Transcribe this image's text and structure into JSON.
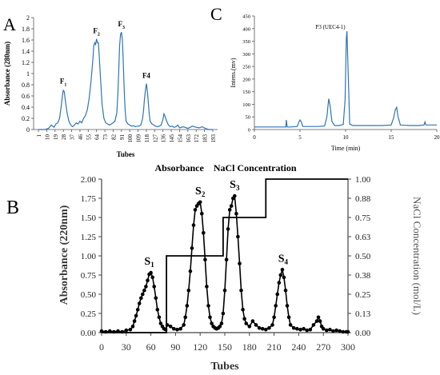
{
  "chart_data": [
    {
      "panel": "A",
      "type": "line",
      "xlabel": "Tubes",
      "ylabel": "Absorbance (280nm)",
      "ylim": [
        0,
        2
      ],
      "y_ticks": [
        "0",
        "0.2",
        "0.4",
        "0.6",
        "0.8",
        "1",
        "1.2",
        "1.4",
        "1.6",
        "1.8",
        "2"
      ],
      "x_ticks": [
        "1",
        "10",
        "19",
        "28",
        "37",
        "46",
        "55",
        "64",
        "73",
        "82",
        "91",
        "100",
        "109",
        "118",
        "127",
        "136",
        "145",
        "154",
        "163",
        "172",
        "183",
        "193"
      ],
      "color": "#2e75b6",
      "peaks": [
        {
          "label": "F",
          "sub": "1",
          "x": 28,
          "y": 0.72
        },
        {
          "label": "F",
          "sub": "2",
          "x": 64,
          "y": 1.62
        },
        {
          "label": "F",
          "sub": "3",
          "x": 91,
          "y": 1.74
        },
        {
          "label": "F4",
          "sub": "",
          "x": 118,
          "y": 0.82
        }
      ],
      "x": [
        1,
        8,
        12,
        15,
        18,
        20,
        22,
        24,
        26,
        27,
        28,
        29,
        30,
        32,
        34,
        36,
        38,
        40,
        42,
        44,
        46,
        48,
        50,
        52,
        54,
        56,
        58,
        60,
        61,
        62,
        63,
        64,
        65,
        66,
        67,
        68,
        70,
        72,
        74,
        76,
        78,
        80,
        82,
        84,
        86,
        87,
        88,
        89,
        90,
        91,
        92,
        93,
        94,
        95,
        96,
        98,
        100,
        102,
        104,
        106,
        108,
        110,
        112,
        114,
        115,
        116,
        117,
        118,
        119,
        120,
        121,
        122,
        124,
        126,
        128,
        130,
        132,
        134,
        136,
        137,
        138,
        140,
        142,
        144,
        146,
        148,
        150,
        152,
        154,
        158,
        163,
        168,
        172,
        176,
        180,
        184,
        188,
        193
      ],
      "y": [
        0.0,
        0.0,
        0.02,
        0.08,
        0.04,
        0.1,
        0.12,
        0.2,
        0.45,
        0.6,
        0.7,
        0.68,
        0.55,
        0.3,
        0.15,
        0.08,
        0.05,
        0.08,
        0.12,
        0.1,
        0.15,
        0.12,
        0.2,
        0.25,
        0.35,
        0.55,
        0.85,
        1.25,
        1.5,
        1.55,
        1.52,
        1.62,
        1.55,
        1.55,
        1.3,
        1.0,
        0.45,
        0.2,
        0.12,
        0.1,
        0.08,
        0.1,
        0.12,
        0.15,
        0.3,
        0.6,
        1.0,
        1.5,
        1.7,
        1.74,
        1.6,
        1.2,
        0.7,
        0.35,
        0.15,
        0.1,
        0.08,
        0.06,
        0.07,
        0.05,
        0.06,
        0.06,
        0.08,
        0.2,
        0.35,
        0.55,
        0.7,
        0.82,
        0.7,
        0.5,
        0.3,
        0.15,
        0.1,
        0.08,
        0.06,
        0.05,
        0.06,
        0.08,
        0.18,
        0.28,
        0.25,
        0.15,
        0.08,
        0.05,
        0.06,
        0.04,
        0.05,
        0.08,
        0.03,
        0.05,
        0.02,
        0.06,
        0.04,
        0.03,
        0.05,
        0.02,
        0.0,
        0.0
      ]
    },
    {
      "panel": "C",
      "type": "line",
      "xlabel": "Time (min)",
      "ylabel": "Intens.(mv)",
      "xlim": [
        0,
        20
      ],
      "ylim": [
        0,
        450
      ],
      "x_ticks": [
        "0",
        "5",
        "10",
        "15",
        "20"
      ],
      "y_ticks": [
        "0",
        "50",
        "100",
        "150",
        "200",
        "250",
        "300",
        "350",
        "400",
        "450"
      ],
      "annotation": "P3 (UEC4-1)",
      "color": "#2e75b6",
      "x": [
        0,
        1,
        2,
        3,
        3.45,
        3.5,
        3.6,
        4,
        4.7,
        4.85,
        5,
        5.15,
        5.3,
        6,
        7,
        7.7,
        7.95,
        8.15,
        8.3,
        8.5,
        8.8,
        9.3,
        9.75,
        9.95,
        10.08,
        10.15,
        10.25,
        10.45,
        10.8,
        12,
        13,
        14,
        15,
        15.25,
        15.45,
        15.6,
        15.75,
        16,
        17,
        18,
        18.6,
        18.7,
        18.8,
        19,
        20
      ],
      "y": [
        10,
        10,
        10,
        10,
        10,
        38,
        10,
        10,
        12,
        28,
        38,
        30,
        12,
        12,
        12,
        14,
        50,
        122,
        95,
        32,
        16,
        16,
        20,
        120,
        360,
        390,
        260,
        22,
        16,
        16,
        16,
        16,
        18,
        45,
        78,
        88,
        52,
        18,
        16,
        16,
        18,
        30,
        18,
        18,
        18
      ]
    },
    {
      "panel": "B",
      "type": "line",
      "title": "Absorbance    NaCl Concentration",
      "xlabel": "Tubes",
      "ylabel": "Absorbance (220nm)",
      "y2label": "NaCl Concentration (mol/L)",
      "xlim": [
        0,
        300
      ],
      "ylim": [
        0,
        2
      ],
      "y2lim": [
        0,
        1
      ],
      "x_ticks": [
        "0",
        "30",
        "60",
        "90",
        "120",
        "150",
        "180",
        "210",
        "240",
        "270",
        "300"
      ],
      "y_ticks": [
        "0.00",
        "0.25",
        "0.50",
        "0.75",
        "1.00",
        "1.25",
        "1.50",
        "1.75",
        "2.00"
      ],
      "y2_ticks": [
        "0.00",
        "0.13",
        "0.25",
        "0.38",
        "0.50",
        "0.63",
        "0.75",
        "0.88",
        "1.00"
      ],
      "peaks": [
        {
          "label": "S",
          "sub": "1",
          "x": 58,
          "y": 0.78
        },
        {
          "label": "S",
          "sub": "2",
          "x": 120,
          "y": 1.7
        },
        {
          "label": "S",
          "sub": "3",
          "x": 162,
          "y": 1.78
        },
        {
          "label": "S",
          "sub": "4",
          "x": 221,
          "y": 0.82
        }
      ],
      "series": [
        {
          "marker": "circle",
          "color": "#000000",
          "x": [
            0,
            5,
            10,
            15,
            20,
            25,
            30,
            35,
            38,
            40,
            42,
            44,
            46,
            48,
            50,
            52,
            54,
            56,
            58,
            60,
            62,
            64,
            66,
            68,
            70,
            72,
            74,
            76,
            78,
            80,
            84,
            88,
            92,
            96,
            100,
            102,
            104,
            106,
            108,
            110,
            112,
            114,
            116,
            118,
            120,
            122,
            124,
            126,
            128,
            130,
            132,
            134,
            136,
            138,
            140,
            142,
            144,
            146,
            148,
            150,
            152,
            154,
            156,
            158,
            160,
            162,
            164,
            166,
            168,
            170,
            172,
            174,
            176,
            180,
            184,
            188,
            192,
            196,
            200,
            204,
            208,
            210,
            212,
            214,
            216,
            218,
            220,
            222,
            224,
            226,
            228,
            230,
            234,
            238,
            242,
            246,
            250,
            254,
            258,
            262,
            264,
            266,
            268,
            270,
            274,
            278,
            282,
            286,
            290,
            294,
            298,
            300
          ],
          "y": [
            0.02,
            0.01,
            0.02,
            0.01,
            0.02,
            0.01,
            0.03,
            0.04,
            0.08,
            0.15,
            0.22,
            0.3,
            0.38,
            0.45,
            0.5,
            0.55,
            0.6,
            0.68,
            0.76,
            0.78,
            0.72,
            0.6,
            0.45,
            0.3,
            0.2,
            0.12,
            0.08,
            0.05,
            0.04,
            0.1,
            0.08,
            0.05,
            0.04,
            0.05,
            0.1,
            0.2,
            0.35,
            0.55,
            0.8,
            1.1,
            1.4,
            1.6,
            1.65,
            1.68,
            1.7,
            1.55,
            1.3,
            0.95,
            0.6,
            0.35,
            0.2,
            0.12,
            0.08,
            0.06,
            0.05,
            0.06,
            0.08,
            0.12,
            0.25,
            0.55,
            0.95,
            1.35,
            1.6,
            1.65,
            1.75,
            1.78,
            1.55,
            1.25,
            0.9,
            0.55,
            0.3,
            0.18,
            0.12,
            0.08,
            0.15,
            0.1,
            0.06,
            0.05,
            0.04,
            0.06,
            0.1,
            0.2,
            0.35,
            0.5,
            0.65,
            0.75,
            0.82,
            0.72,
            0.55,
            0.35,
            0.2,
            0.1,
            0.06,
            0.05,
            0.04,
            0.05,
            0.03,
            0.04,
            0.1,
            0.15,
            0.2,
            0.15,
            0.08,
            0.05,
            0.03,
            0.04,
            0.02,
            0.03,
            0.02,
            0.01,
            0.01,
            0.01
          ]
        },
        {
          "axis": "right",
          "step": true,
          "color": "#000000",
          "x": [
            0,
            79,
            79,
            148,
            148,
            200,
            200,
            300
          ],
          "y": [
            0,
            0,
            0.5,
            0.5,
            0.75,
            0.75,
            1.0,
            1.0
          ]
        }
      ]
    }
  ],
  "panel_letters": {
    "a": "A",
    "b": "B",
    "c": "C"
  }
}
